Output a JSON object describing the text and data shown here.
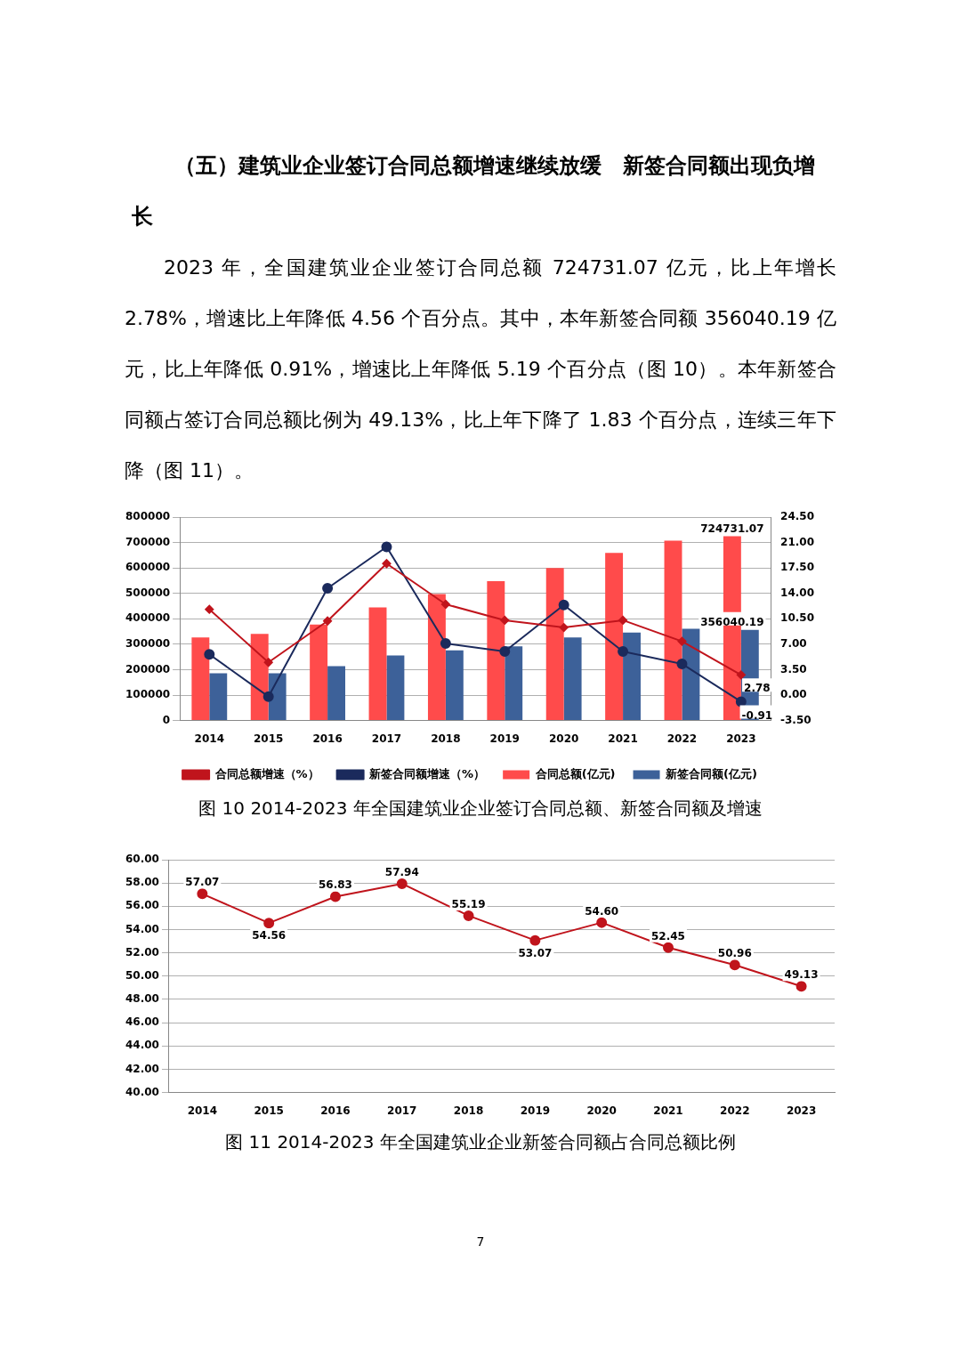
{
  "chart_data": [
    {
      "type": "bar",
      "title": "（五）建筑业企业签订合同总额增速继续放缓　新签合同额出现负增长",
      "subtitle": "2023 年，全国建筑业企业签订合同总额 724731.07 亿元，比上年增长 2.78%，增速比上年降低 4.56 个百分点。其中，本年新签合同额 356040.19 亿元，比上年降低 0.91%，增速比上年降低 5.19 个百分点（图 10）。本年新签合同额占签订合同总额比例为 49.13%，比上年下降了 1.83 个百分点，连续三年下降（图 11）。",
      "annotations": [
        "图 10  2014-2023 年全国建筑业企业签订合同总额、新签合同额及增速"
      ],
      "categories": [
        "2014",
        "2015",
        "2016",
        "2017",
        "2018",
        "2019",
        "2020",
        "2021",
        "2022",
        "2023"
      ],
      "series": [
        {
          "name": "合同总额(亿元)",
          "type": "bar",
          "color": "#ff4b4b",
          "values": [
            327000,
            341000,
            377000,
            445000,
            497000,
            548000,
            600000,
            659000,
            707000,
            724731.07
          ],
          "value_labels": [
            null,
            null,
            null,
            null,
            null,
            null,
            null,
            null,
            null,
            "724731.07"
          ]
        },
        {
          "name": "新签合同额(亿元)",
          "type": "bar",
          "color": "#3d6199",
          "values": [
            186000,
            186000,
            214000,
            256000,
            276000,
            292000,
            327000,
            346000,
            361000,
            356040.19
          ],
          "value_labels": [
            null,
            null,
            null,
            null,
            null,
            null,
            null,
            null,
            null,
            "356040.19"
          ]
        },
        {
          "name": "合同总额增速（%）",
          "type": "line",
          "axis": "y2",
          "marker": "diamond",
          "color": "#c0141c",
          "values": [
            11.8,
            4.5,
            10.2,
            18.1,
            12.5,
            10.3,
            9.3,
            10.3,
            7.4,
            2.78
          ],
          "value_labels": [
            null,
            null,
            null,
            null,
            null,
            null,
            null,
            null,
            null,
            "2.78"
          ]
        },
        {
          "name": "新签合同额增速（%）",
          "type": "line",
          "axis": "y2",
          "marker": "circle",
          "color": "#1b2a5c",
          "values": [
            5.6,
            -0.2,
            14.7,
            20.4,
            7.1,
            6.0,
            12.4,
            6.0,
            4.3,
            -0.91
          ],
          "value_labels": [
            null,
            null,
            null,
            null,
            null,
            null,
            null,
            null,
            null,
            "-0.91"
          ]
        }
      ],
      "ylim": [
        0,
        800000
      ],
      "yticks": [
        0,
        100000,
        200000,
        300000,
        400000,
        500000,
        600000,
        700000,
        800000
      ],
      "y2lim": [
        -3.5,
        24.5
      ],
      "y2ticks": [
        {
          "value": -3.5,
          "label": "-3.50"
        },
        {
          "value": 0,
          "label": "0.00"
        },
        {
          "value": 3.5,
          "label": "3.50"
        },
        {
          "value": 7,
          "label": "7.00"
        },
        {
          "value": 10.5,
          "label": "10.50"
        },
        {
          "value": 14,
          "label": "14.00"
        },
        {
          "value": 17.5,
          "label": "17.50"
        },
        {
          "value": 21,
          "label": "21.00"
        },
        {
          "value": 24.5,
          "label": "24.50"
        }
      ],
      "grid": "y",
      "legend": "bottom"
    },
    {
      "type": "line",
      "annotations": [
        "图 11  2014-2023 年全国建筑业企业新签合同额占合同总额比例",
        "7"
      ],
      "categories": [
        "2014",
        "2015",
        "2016",
        "2017",
        "2018",
        "2019",
        "2020",
        "2021",
        "2022",
        "2023"
      ],
      "series": [
        {
          "color": "#c0141c",
          "marker": "circle",
          "values": [
            57.07,
            54.56,
            56.83,
            57.94,
            55.19,
            53.07,
            54.6,
            52.45,
            50.96,
            49.13
          ],
          "value_labels": [
            "57.07",
            "54.56",
            "56.83",
            "57.94",
            "55.19",
            "53.07",
            "54.60",
            "52.45",
            "50.96",
            "49.13"
          ]
        }
      ],
      "ylim": [
        40,
        60
      ],
      "yticks": [
        {
          "value": 40,
          "label": "40.00"
        },
        {
          "value": 42,
          "label": "42.00"
        },
        {
          "value": 44,
          "label": "44.00"
        },
        {
          "value": 46,
          "label": "46.00"
        },
        {
          "value": 48,
          "label": "48.00"
        },
        {
          "value": 50,
          "label": "50.00"
        },
        {
          "value": 52,
          "label": "52.00"
        },
        {
          "value": 54,
          "label": "54.00"
        },
        {
          "value": 56,
          "label": "56.00"
        },
        {
          "value": 58,
          "label": "58.00"
        },
        {
          "value": 60,
          "label": "60.00"
        }
      ],
      "grid": "y"
    }
  ]
}
